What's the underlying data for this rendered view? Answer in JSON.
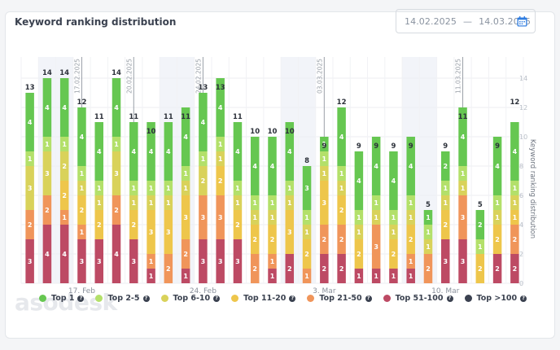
{
  "header": {
    "title": "Keyword ranking distribution",
    "date_from": "14.02.2025",
    "date_sep": "—",
    "date_to": "14.03.2025"
  },
  "watermark": "asodesk",
  "chart_data": {
    "type": "bar",
    "stacked": true,
    "ylabel_right": "Keyword ranking distribution",
    "ylim": [
      0,
      14
    ],
    "yticks": [
      0,
      2,
      4,
      6,
      8,
      10,
      12,
      14
    ],
    "xticks": [
      {
        "index": 3,
        "label": "17. Feb"
      },
      {
        "index": 10,
        "label": "24. Feb"
      },
      {
        "index": 17,
        "label": "3. Mar"
      },
      {
        "index": 24,
        "label": "10. Mar"
      }
    ],
    "markers": [
      {
        "index": 3,
        "label": "17.02.2025"
      },
      {
        "index": 6,
        "label": "20.02.2025"
      },
      {
        "index": 10,
        "label": "24.02.2025"
      },
      {
        "index": 17,
        "label": "03.03.2025"
      },
      {
        "index": 25,
        "label": "11.03.2025"
      }
    ],
    "weekend_bands": [
      [
        1,
        2
      ],
      [
        8,
        9
      ],
      [
        15,
        16
      ],
      [
        22,
        23
      ]
    ],
    "categories": [
      "14.02",
      "15.02",
      "16.02",
      "17.02",
      "18.02",
      "19.02",
      "20.02",
      "21.02",
      "22.02",
      "23.02",
      "24.02",
      "25.02",
      "26.02",
      "27.02",
      "28.02",
      "01.03",
      "02.03",
      "03.03",
      "04.03",
      "05.03",
      "06.03",
      "07.03",
      "08.03",
      "09.03",
      "10.03",
      "11.03",
      "12.03",
      "13.03",
      "14.03"
    ],
    "totals": [
      13,
      14,
      14,
      12,
      11,
      14,
      11,
      10,
      11,
      11,
      13,
      13,
      11,
      10,
      10,
      10,
      8,
      9,
      12,
      9,
      9,
      9,
      9,
      5,
      9,
      11,
      5,
      9,
      12
    ],
    "series": [
      {
        "name": "Top 1",
        "color": "#66c751",
        "values": [
          4,
          4,
          4,
          4,
          4,
          4,
          4,
          4,
          4,
          4,
          4,
          4,
          4,
          4,
          4,
          4,
          3,
          1,
          4,
          4,
          4,
          4,
          4,
          1,
          2,
          4,
          2,
          4,
          4
        ]
      },
      {
        "name": "Top 2-5",
        "color": "#b3e06a",
        "values": [
          1,
          1,
          1,
          1,
          1,
          1,
          1,
          1,
          1,
          1,
          1,
          1,
          1,
          1,
          1,
          1,
          1,
          1,
          1,
          1,
          1,
          1,
          1,
          1,
          1,
          1,
          1,
          1,
          1
        ]
      },
      {
        "name": "Top 6-10",
        "color": "#d9d25a",
        "values": [
          3,
          3,
          2,
          1,
          1,
          3,
          1,
          1,
          1,
          1,
          2,
          1,
          1,
          1,
          1,
          1,
          1,
          1,
          1,
          1,
          1,
          1,
          1,
          1,
          1,
          1,
          0,
          1,
          1
        ]
      },
      {
        "name": "Top 11-20",
        "color": "#eec64b",
        "values": [
          0,
          0,
          2,
          2,
          2,
          0,
          2,
          3,
          3,
          3,
          0,
          2,
          2,
          2,
          2,
          3,
          2,
          3,
          2,
          2,
          0,
          2,
          2,
          0,
          2,
          0,
          2,
          2,
          1
        ]
      },
      {
        "name": "Top 21-50",
        "color": "#f0955a",
        "values": [
          2,
          2,
          1,
          1,
          0,
          2,
          0,
          1,
          2,
          2,
          3,
          3,
          0,
          2,
          1,
          0,
          1,
          2,
          2,
          0,
          3,
          0,
          1,
          2,
          0,
          3,
          0,
          0,
          2
        ]
      },
      {
        "name": "Top 51-100",
        "color": "#bd4a64",
        "values": [
          3,
          4,
          4,
          3,
          3,
          4,
          3,
          1,
          0,
          1,
          3,
          3,
          3,
          0,
          1,
          2,
          0,
          2,
          2,
          1,
          1,
          1,
          1,
          0,
          3,
          3,
          0,
          2,
          2
        ]
      },
      {
        "name": "Top >100",
        "color": "#3b4150",
        "values": [
          0,
          0,
          0,
          0,
          0,
          0,
          0,
          0,
          0,
          0,
          0,
          0,
          0,
          0,
          0,
          0,
          0,
          0,
          0,
          0,
          0,
          0,
          0,
          0,
          0,
          0,
          0,
          0,
          0
        ]
      }
    ],
    "grid": true,
    "legend_position": "bottom"
  }
}
